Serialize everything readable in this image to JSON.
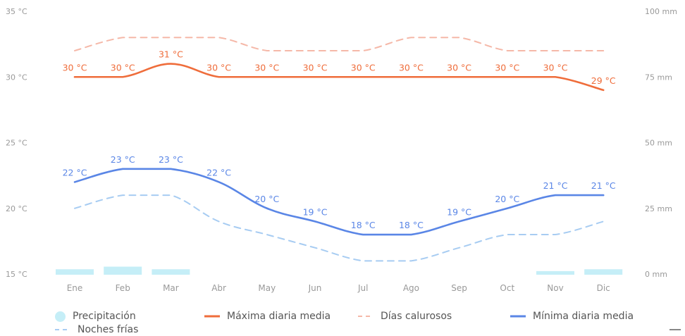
{
  "chart_data": {
    "type": "line",
    "categories": [
      "Ene",
      "Feb",
      "Mar",
      "Abr",
      "May",
      "Jun",
      "Jul",
      "Ago",
      "Sep",
      "Oct",
      "Nov",
      "Dic"
    ],
    "left_axis": {
      "ticks": [
        15,
        20,
        25,
        30,
        35
      ],
      "unit": "°C",
      "tick_labels": [
        "15 °C",
        "20 °C",
        "25 °C",
        "30 °C",
        "35 °C"
      ],
      "ylim": [
        15,
        35
      ]
    },
    "right_axis": {
      "ticks": [
        0,
        25,
        50,
        75,
        100
      ],
      "unit": "mm",
      "tick_labels": [
        "0 mm",
        "25 mm",
        "50 mm",
        "75 mm",
        "100 mm"
      ],
      "ylim": [
        0,
        100
      ]
    },
    "series": [
      {
        "name": "Precipitación",
        "type": "bar",
        "axis": "right",
        "color": "#c5eef7",
        "values": [
          1,
          2,
          1,
          0,
          0,
          0,
          0,
          0,
          0,
          0,
          0.3,
          1
        ]
      },
      {
        "name": "Máxima diaria media",
        "type": "line",
        "axis": "left",
        "color": "#ef6d3b",
        "values": [
          30,
          30,
          31,
          30,
          30,
          30,
          30,
          30,
          30,
          30,
          30,
          29
        ],
        "labels": [
          "30 °C",
          "30 °C",
          "31 °C",
          "30 °C",
          "30 °C",
          "30 °C",
          "30 °C",
          "30 °C",
          "30 °C",
          "30 °C",
          "30 °C",
          "29 °C"
        ]
      },
      {
        "name": "Días calurosos",
        "type": "line",
        "style": "dashed",
        "axis": "left",
        "color": "#f5b8a8",
        "values": [
          32,
          33,
          33,
          33,
          32,
          32,
          32,
          33,
          33,
          32,
          32,
          32
        ]
      },
      {
        "name": "Mínima diaria media",
        "type": "line",
        "axis": "left",
        "color": "#5a86e6",
        "values": [
          22,
          23,
          23,
          22,
          20,
          19,
          18,
          18,
          19,
          20,
          21,
          21
        ],
        "labels": [
          "22 °C",
          "23 °C",
          "23 °C",
          "22 °C",
          "20 °C",
          "19 °C",
          "18 °C",
          "18 °C",
          "19 °C",
          "20 °C",
          "21 °C",
          "21 °C"
        ]
      },
      {
        "name": "Noches frías",
        "type": "line",
        "style": "dashed",
        "axis": "left",
        "color": "#a7ccf2",
        "values": [
          20,
          21,
          21,
          19,
          18,
          17,
          16,
          16,
          17,
          18,
          18,
          19
        ]
      }
    ],
    "legend": {
      "placement": "bottom",
      "items": [
        "Precipitación",
        "Máxima diaria media",
        "Días calurosos",
        "Mínima diaria media",
        "Noches frías"
      ]
    },
    "grid": false
  }
}
